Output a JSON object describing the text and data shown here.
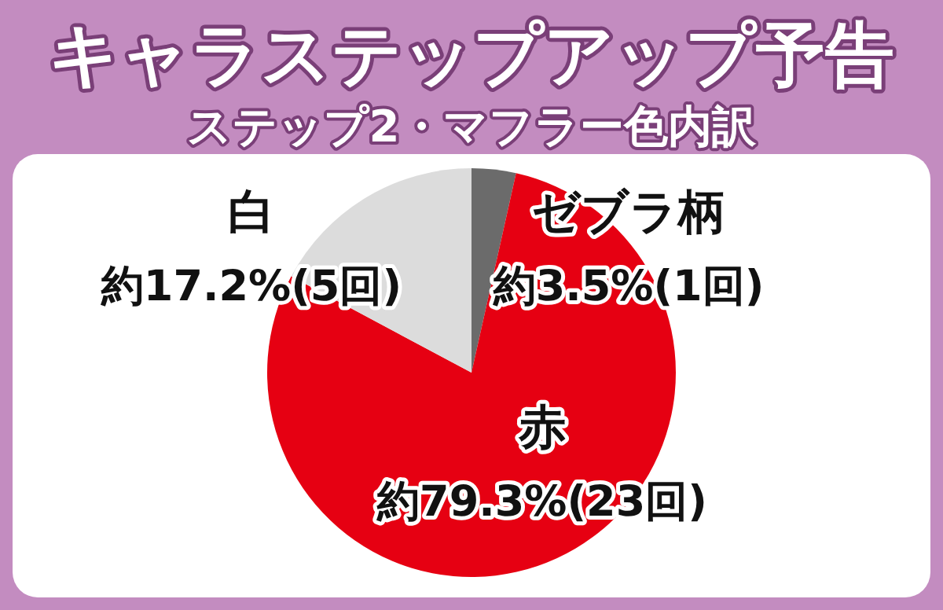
{
  "chart_data": {
    "type": "pie",
    "title": "キャラステップアップ予告",
    "subtitle": "ステップ2・マフラー色内訳",
    "categories": [
      "ゼブラ柄",
      "赤",
      "白"
    ],
    "values": [
      3.5,
      79.3,
      17.2
    ],
    "colors": [
      "#6b6b6b",
      "#e60012",
      "#dcdcdc"
    ],
    "value_labels": [
      "約3.5%(1回)",
      "約79.3%(23回)",
      "約17.2%(5回)"
    ]
  }
}
